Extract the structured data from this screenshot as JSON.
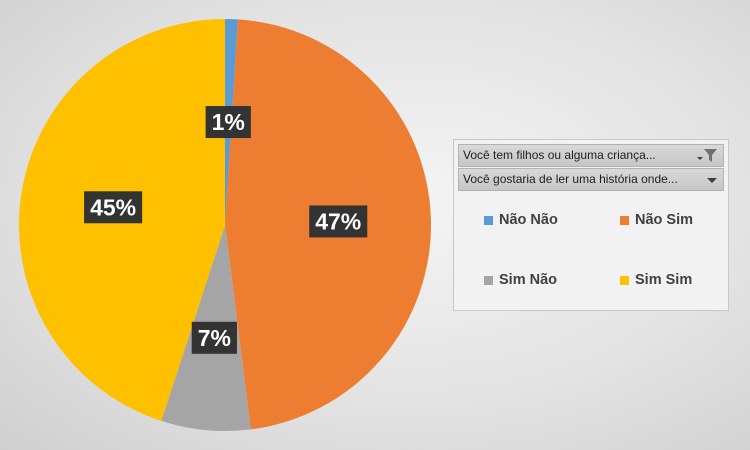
{
  "chart_data": {
    "type": "pie",
    "title": "",
    "start_angle_deg": 0,
    "direction": "clockwise",
    "slices": [
      {
        "label": "Não Não",
        "value": 1,
        "display": "1%",
        "color": "#5b9bd5"
      },
      {
        "label": "Não Sim",
        "value": 47,
        "display": "47%",
        "color": "#ed7d31"
      },
      {
        "label": "Sim Não",
        "value": 7,
        "display": "7%",
        "color": "#a5a5a5"
      },
      {
        "label": "Sim Sim",
        "value": 45,
        "display": "45%",
        "color": "#ffc000"
      }
    ],
    "data_label_box_color": "#333333",
    "legend_position": "right",
    "filters": [
      {
        "label": "Você tem filhos ou alguma criança...",
        "icon": "filter-icon"
      },
      {
        "label": "Você gostaria de ler uma história onde...",
        "icon": "dropdown-arrow-icon"
      }
    ]
  }
}
